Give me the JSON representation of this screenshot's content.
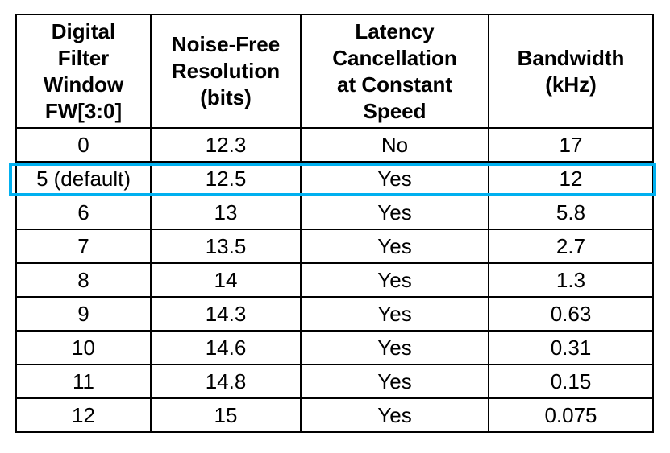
{
  "table": {
    "headers": [
      "Digital\nFilter\nWindow\nFW[3:0]",
      "Noise-Free\nResolution\n(bits)",
      "Latency\nCancellation\nat Constant\nSpeed",
      "Bandwidth\n(kHz)"
    ],
    "rows": [
      [
        "0",
        "12.3",
        "No",
        "17"
      ],
      [
        "5 (default)",
        "12.5",
        "Yes",
        "12"
      ],
      [
        "6",
        "13",
        "Yes",
        "5.8"
      ],
      [
        "7",
        "13.5",
        "Yes",
        "2.7"
      ],
      [
        "8",
        "14",
        "Yes",
        "1.3"
      ],
      [
        "9",
        "14.3",
        "Yes",
        "0.63"
      ],
      [
        "10",
        "14.6",
        "Yes",
        "0.31"
      ],
      [
        "11",
        "14.8",
        "Yes",
        "0.15"
      ],
      [
        "12",
        "15",
        "Yes",
        "0.075"
      ]
    ]
  },
  "highlight": {
    "row_index": 1,
    "color": "#00b0f0"
  }
}
